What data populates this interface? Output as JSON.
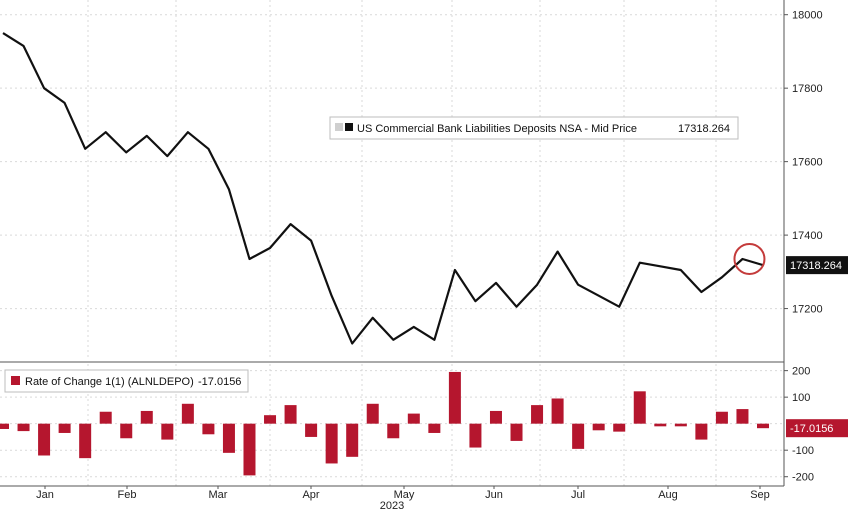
{
  "colors": {
    "line": "#111111",
    "bars": "#b5162e",
    "grid": "#d9d9d9",
    "last_value_tag_line": "#111111",
    "last_value_tag_bars": "#b5162e",
    "highlight_circle": "#c43b3b"
  },
  "chart_data": [
    {
      "type": "line",
      "series": [
        {
          "name": "US Commercial Bank Liabilities Deposits NSA - Mid Price",
          "last_value_label": "17318.264",
          "values": [
            17950,
            17915,
            17800,
            17760,
            17635,
            17680,
            17625,
            17670,
            17615,
            17680,
            17635,
            17525,
            17335,
            17365,
            17430,
            17385,
            17235,
            17105,
            17175,
            17115,
            17150,
            17115,
            17305,
            17220,
            17270,
            17205,
            17265,
            17355,
            17265,
            17235,
            17205,
            17325,
            17315,
            17305,
            17245,
            17285,
            17335,
            17318.264
          ]
        }
      ],
      "legend": {
        "text": "US Commercial Bank Liabilities Deposits NSA - Mid Price",
        "value": "17318.264",
        "placement": "top-center"
      },
      "y_axis": {
        "side": "right",
        "ticks": [
          "18000",
          "17800",
          "17600",
          "17400",
          "17200"
        ],
        "tick_values": [
          18000,
          17800,
          17600,
          17400,
          17200
        ],
        "range": [
          17060,
          18040
        ]
      },
      "annotations": [
        {
          "type": "circle",
          "index": 36
        }
      ],
      "grid": true
    },
    {
      "type": "bar",
      "series": [
        {
          "name": "Rate of Change 1(1) (ALNLDEPO)",
          "last_value_label": "-17.0156",
          "values": [
            -20,
            -28,
            -120,
            -35,
            -130,
            45,
            -55,
            48,
            -60,
            75,
            -40,
            -110,
            -195,
            32,
            70,
            -50,
            -150,
            -125,
            75,
            -55,
            38,
            -35,
            195,
            -90,
            48,
            -65,
            70,
            95,
            -95,
            -25,
            -30,
            122,
            -10,
            -10,
            -60,
            45,
            55,
            -17.0156
          ]
        }
      ],
      "legend": {
        "text": "Rate of Change 1(1) (ALNLDEPO)",
        "value": "-17.0156",
        "placement": "top-left"
      },
      "y_axis": {
        "side": "right",
        "ticks": [
          "200",
          "100",
          "-100",
          "-200"
        ],
        "tick_values": [
          200,
          100,
          -100,
          -200
        ],
        "range": [
          -235,
          225
        ]
      },
      "grid": true
    }
  ],
  "x_axis": {
    "months": [
      "Jan",
      "Feb",
      "Mar",
      "Apr",
      "May",
      "Jun",
      "Jul",
      "Aug",
      "Sep"
    ],
    "year": "2023"
  }
}
